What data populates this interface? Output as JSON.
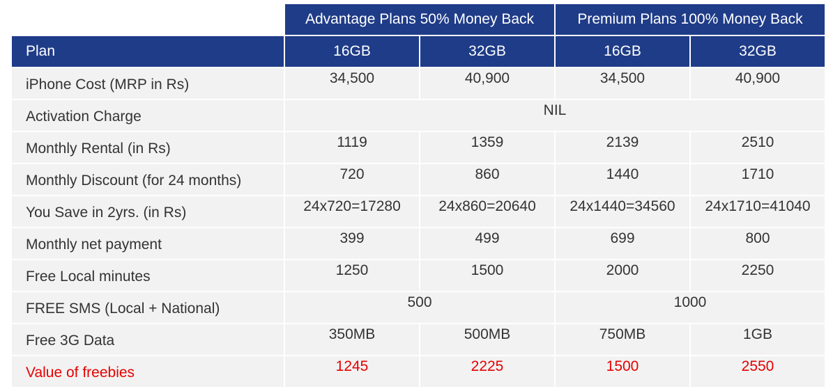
{
  "groups": {
    "advantage": "Advantage Plans 50% Money Back",
    "premium": "Premium Plans 100% Money Back"
  },
  "columns": {
    "plan": "Plan",
    "c1": "16GB",
    "c2": "32GB",
    "c3": "16GB",
    "c4": "32GB"
  },
  "rows": {
    "iphone_cost": {
      "label": "iPhone Cost (MRP in Rs)",
      "v": [
        "34,500",
        "40,900",
        "34,500",
        "40,900"
      ]
    },
    "activation": {
      "label": "Activation Charge",
      "v": "NIL"
    },
    "monthly_rental": {
      "label": "Monthly Rental (in Rs)",
      "v": [
        "1119",
        "1359",
        "2139",
        "2510"
      ]
    },
    "monthly_discount": {
      "label": "Monthly Discount (for 24 months)",
      "v": [
        "720",
        "860",
        "1440",
        "1710"
      ]
    },
    "you_save": {
      "label": "You Save in 2yrs. (in Rs)",
      "v": [
        "24x720=17280",
        "24x860=20640",
        "24x1440=34560",
        "24x1710=41040"
      ]
    },
    "net_payment": {
      "label": "Monthly net payment",
      "v": [
        "399",
        "499",
        "699",
        "800"
      ]
    },
    "local_minutes": {
      "label": "Free Local minutes",
      "v": [
        "1250",
        "1500",
        "2000",
        "2250"
      ]
    },
    "free_sms": {
      "label": "FREE SMS (Local + National)",
      "v": [
        "500",
        "1000"
      ]
    },
    "data_3g": {
      "label": "Free 3G Data",
      "v": [
        "350MB",
        "500MB",
        "750MB",
        "1GB"
      ]
    },
    "freebies": {
      "label": "Value of freebies",
      "v": [
        "1245",
        "2225",
        "1500",
        "2550"
      ]
    }
  },
  "colors": {
    "header_bg": "#1f3c88",
    "row_bg": "#f2f2f2",
    "highlight_text": "#e60000"
  }
}
